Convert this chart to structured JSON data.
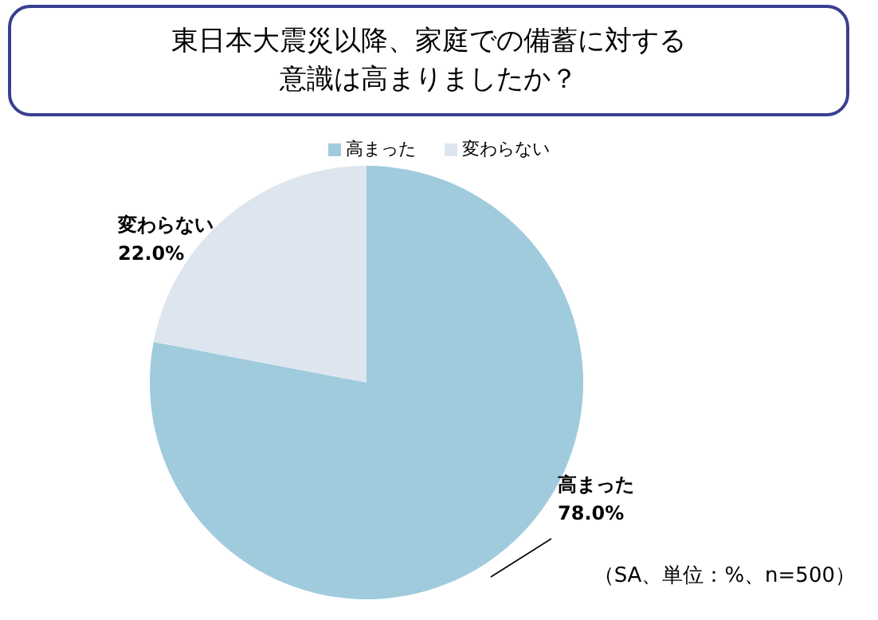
{
  "chart_data": {
    "type": "pie",
    "title": "東日本大震災以降、家庭での備蓄に対する意識は高まりましたか？",
    "categories": [
      "高まった",
      "変わらない"
    ],
    "values": [
      78.0,
      22.0
    ],
    "colors": [
      "#9fcbdd",
      "#dde6ef"
    ],
    "value_labels": [
      "78.0%",
      "22.0%"
    ],
    "legend": "top",
    "annotations": [
      "（SA、単位：%、n=500）"
    ]
  }
}
